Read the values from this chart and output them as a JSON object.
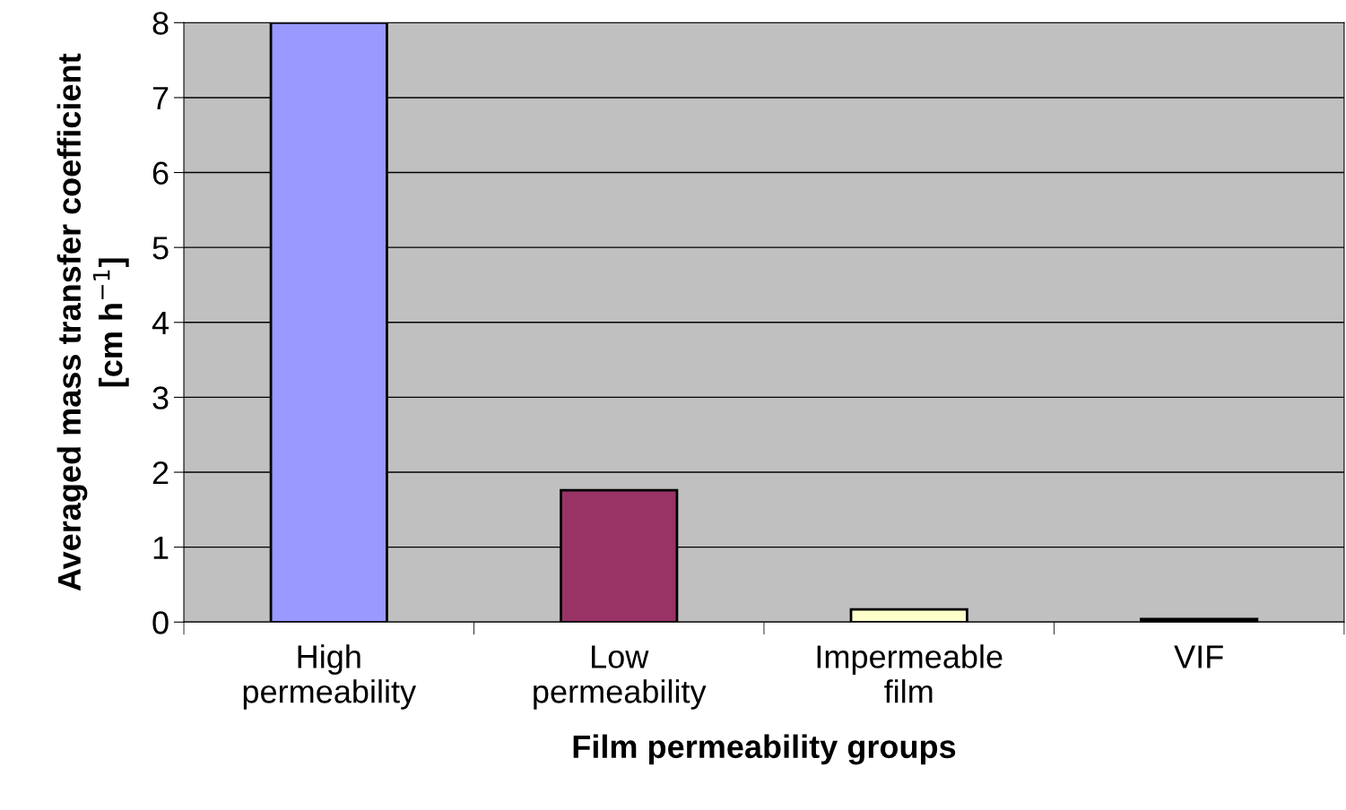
{
  "chart_data": {
    "type": "bar",
    "xlabel": "Film permeability groups",
    "ylabel": "Averaged mass transfer coefficient\n[cm h$^{−1}$]",
    "categories": [
      "High\npermeability",
      "Low\npermeability",
      "Impermeable\nfilm",
      "VIF"
    ],
    "values": [
      8,
      1.76,
      0.17,
      0.04
    ],
    "colors": [
      "#9999ff",
      "#993366",
      "#ffffcc",
      "#000000"
    ],
    "ylim": [
      0,
      8
    ],
    "yticks": [
      0,
      1,
      2,
      3,
      4,
      5,
      6,
      7,
      8
    ],
    "grid": "y",
    "legend": false
  }
}
